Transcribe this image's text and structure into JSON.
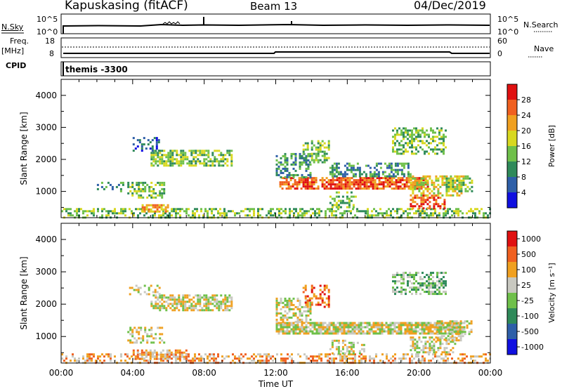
{
  "header": {
    "station": "Kapuskasing (fitACF)",
    "beam": "Beam 13",
    "date": "04/Dec/2019"
  },
  "top_panels": {
    "nsky_label": "N.Sky",
    "nsky_ticks": [
      "10^5",
      "10^0"
    ],
    "nsearch_label": "N.Search",
    "nsearch_ticks": [
      "10^5",
      "10^0"
    ],
    "freq_label_1": "Freq.",
    "freq_label_2": "[MHz]",
    "freq_ticks": [
      "18",
      "8"
    ],
    "nave_label": "Nave",
    "nave_ticks": [
      "60",
      "0"
    ],
    "cpid_label": "CPID",
    "cpid_value": "themis -3300"
  },
  "chart_data": [
    {
      "type": "heatmap",
      "title": "",
      "xlabel": "Time UT",
      "ylabel": "Slant Range [km]",
      "x_tick_labels": [
        "00:00",
        "04:00",
        "08:00",
        "12:00",
        "16:00",
        "20:00",
        "00:00"
      ],
      "y_tick_labels": [
        "1000",
        "2000",
        "3000",
        "4000"
      ],
      "xlim_hours": [
        0,
        24
      ],
      "ylim_km": [
        180,
        4500
      ],
      "colorbar_label": "Power [dB]",
      "colorbar_ticks": [
        "4",
        "8",
        "12",
        "16",
        "20",
        "24",
        "28"
      ],
      "colorbar_colors": [
        "#1010e0",
        "#2e5fa8",
        "#2f8a5a",
        "#6fc04a",
        "#d8d820",
        "#f0a020",
        "#f06020",
        "#e01010"
      ],
      "regions": [
        {
          "t0": 0.0,
          "t1": 24.0,
          "r0": 180,
          "r1": 480,
          "level": 3,
          "density": 0.45
        },
        {
          "t0": 4.5,
          "t1": 6.0,
          "r0": 350,
          "r1": 600,
          "level": 5,
          "density": 0.7
        },
        {
          "t0": 3.7,
          "t1": 5.8,
          "r0": 800,
          "r1": 1300,
          "level": 3,
          "density": 0.5
        },
        {
          "t0": 2.0,
          "t1": 3.5,
          "r0": 1000,
          "r1": 1300,
          "level": 2,
          "density": 0.4
        },
        {
          "t0": 5.0,
          "t1": 9.5,
          "r0": 1800,
          "r1": 2300,
          "level": 3,
          "density": 0.65
        },
        {
          "t0": 4.0,
          "t1": 5.5,
          "r0": 2300,
          "r1": 2700,
          "level": 1,
          "density": 0.35
        },
        {
          "t0": 12.2,
          "t1": 20.5,
          "r0": 1100,
          "r1": 1450,
          "level": 6,
          "density": 0.8
        },
        {
          "t0": 12.0,
          "t1": 14.0,
          "r0": 1450,
          "r1": 2200,
          "level": 2,
          "density": 0.5
        },
        {
          "t0": 13.5,
          "t1": 15.0,
          "r0": 1900,
          "r1": 2600,
          "level": 3,
          "density": 0.45
        },
        {
          "t0": 15.0,
          "t1": 19.5,
          "r0": 1500,
          "r1": 1900,
          "level": 2,
          "density": 0.5
        },
        {
          "t0": 18.5,
          "t1": 21.5,
          "r0": 2200,
          "r1": 3000,
          "level": 3,
          "density": 0.5
        },
        {
          "t0": 19.5,
          "t1": 22.5,
          "r0": 900,
          "r1": 1500,
          "level": 4,
          "density": 0.55
        },
        {
          "t0": 19.5,
          "t1": 21.5,
          "r0": 450,
          "r1": 900,
          "level": 6,
          "density": 0.6
        },
        {
          "t0": 21.5,
          "t1": 23.0,
          "r0": 1000,
          "r1": 1500,
          "level": 3,
          "density": 0.4
        },
        {
          "t0": 15.0,
          "t1": 16.5,
          "r0": 500,
          "r1": 1000,
          "level": 3,
          "density": 0.35
        }
      ]
    },
    {
      "type": "heatmap",
      "title": "",
      "xlabel": "Time UT",
      "ylabel": "Slant Range [km]",
      "x_tick_labels": [
        "00:00",
        "04:00",
        "08:00",
        "12:00",
        "16:00",
        "20:00",
        "00:00"
      ],
      "y_tick_labels": [
        "1000",
        "2000",
        "3000",
        "4000"
      ],
      "xlim_hours": [
        0,
        24
      ],
      "ylim_km": [
        180,
        4500
      ],
      "colorbar_label": "Velocity [m s^-1]",
      "colorbar_ticks": [
        "1000",
        "500",
        "100",
        "25",
        "-25",
        "-100",
        "-500",
        "-1000"
      ],
      "colorbar_colors": [
        "#1010e0",
        "#2e5fa8",
        "#2f8a5a",
        "#6fc04a",
        "#c8c8c0",
        "#f0a020",
        "#f06020",
        "#e01010"
      ],
      "regions": [
        {
          "t0": 0.0,
          "t1": 24.0,
          "r0": 180,
          "r1": 480,
          "level": 5,
          "density": 0.4
        },
        {
          "t0": 4.0,
          "t1": 7.0,
          "r0": 300,
          "r1": 600,
          "level": 5,
          "density": 0.6
        },
        {
          "t0": 3.7,
          "t1": 5.8,
          "r0": 800,
          "r1": 1300,
          "level": 4,
          "density": 0.45
        },
        {
          "t0": 5.0,
          "t1": 9.5,
          "r0": 1800,
          "r1": 2300,
          "level": 4,
          "density": 0.7
        },
        {
          "t0": 3.8,
          "t1": 5.5,
          "r0": 2300,
          "r1": 2600,
          "level": 4,
          "density": 0.4
        },
        {
          "t0": 12.0,
          "t1": 22.5,
          "r0": 1100,
          "r1": 1450,
          "level": 4,
          "density": 0.85
        },
        {
          "t0": 12.0,
          "t1": 14.0,
          "r0": 1450,
          "r1": 2200,
          "level": 4,
          "density": 0.55
        },
        {
          "t0": 13.5,
          "t1": 15.0,
          "r0": 1900,
          "r1": 2600,
          "level": 6,
          "density": 0.45
        },
        {
          "t0": 18.5,
          "t1": 21.5,
          "r0": 2300,
          "r1": 3000,
          "level": 3,
          "density": 0.5
        },
        {
          "t0": 19.5,
          "t1": 22.0,
          "r0": 500,
          "r1": 1000,
          "level": 4,
          "density": 0.55
        },
        {
          "t0": 21.0,
          "t1": 23.0,
          "r0": 900,
          "r1": 1500,
          "level": 4,
          "density": 0.45
        },
        {
          "t0": 15.0,
          "t1": 17.0,
          "r0": 500,
          "r1": 900,
          "level": 4,
          "density": 0.35
        }
      ]
    }
  ]
}
